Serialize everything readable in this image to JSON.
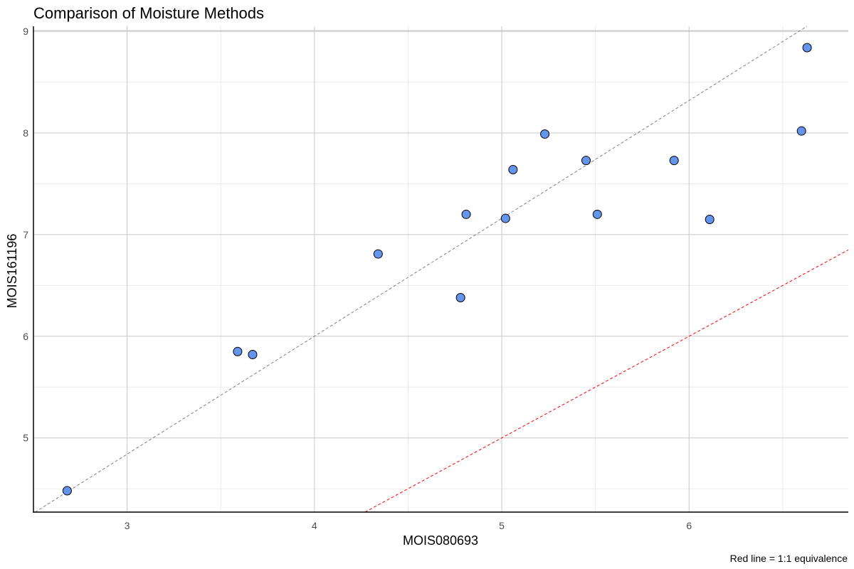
{
  "chart_data": {
    "type": "scatter",
    "title": "Comparison of Moisture Methods",
    "xlabel": "MOIS080693",
    "ylabel": "MOIS161196",
    "caption": "Red line = 1:1 equivalence",
    "xlim": [
      2.5,
      6.85
    ],
    "ylim": [
      4.27,
      9.05
    ],
    "x_ticks": [
      "3",
      "4",
      "5",
      "6"
    ],
    "y_ticks": [
      "5",
      "6",
      "7",
      "8",
      "9"
    ],
    "grid": true,
    "points": [
      {
        "x": 2.68,
        "y": 4.48
      },
      {
        "x": 3.59,
        "y": 5.85
      },
      {
        "x": 3.67,
        "y": 5.82
      },
      {
        "x": 4.34,
        "y": 6.81
      },
      {
        "x": 4.78,
        "y": 6.38
      },
      {
        "x": 4.81,
        "y": 7.2
      },
      {
        "x": 5.02,
        "y": 7.16
      },
      {
        "x": 5.06,
        "y": 7.64
      },
      {
        "x": 5.23,
        "y": 7.99
      },
      {
        "x": 5.45,
        "y": 7.73
      },
      {
        "x": 5.51,
        "y": 7.2
      },
      {
        "x": 5.92,
        "y": 7.73
      },
      {
        "x": 6.11,
        "y": 7.15
      },
      {
        "x": 6.6,
        "y": 8.02
      },
      {
        "x": 6.63,
        "y": 8.84
      }
    ],
    "reference_lines": [
      {
        "kind": "regression",
        "color": "#808080",
        "dash": "dashed",
        "intercept": 1.36,
        "slope": 1.16
      },
      {
        "kind": "identity",
        "color": "#ff0000",
        "dash": "dashed",
        "intercept": 0,
        "slope": 1
      }
    ],
    "point_fill": "#6495ed",
    "point_stroke": "#000000"
  }
}
